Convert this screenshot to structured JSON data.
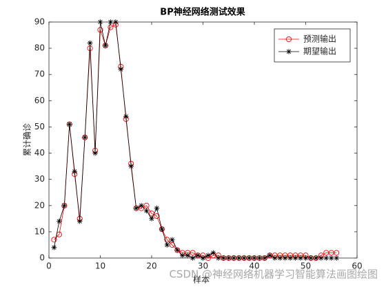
{
  "chart_data": {
    "type": "line",
    "title": "BP神经网络测试效果",
    "xlabel": "样本",
    "ylabel": "累计确诊",
    "x": [
      1,
      2,
      3,
      4,
      5,
      6,
      7,
      8,
      9,
      10,
      11,
      12,
      13,
      14,
      15,
      16,
      17,
      18,
      19,
      20,
      21,
      22,
      23,
      24,
      25,
      26,
      27,
      28,
      29,
      30,
      31,
      32,
      33,
      34,
      35,
      36,
      37,
      38,
      39,
      40,
      41,
      42,
      43,
      44,
      45,
      46,
      47,
      48,
      49,
      50,
      51,
      52,
      53,
      54,
      55,
      56
    ],
    "series": [
      {
        "name": "预测输出",
        "color": "#ff0000",
        "marker": "circle",
        "values": [
          7,
          9,
          20,
          51,
          32,
          15,
          46,
          80,
          41,
          87,
          81,
          88,
          89,
          73,
          53,
          36,
          19,
          19,
          20,
          17,
          16,
          11,
          7,
          5,
          3,
          2,
          2,
          2,
          1,
          1,
          0,
          1,
          1,
          0,
          0,
          0,
          0,
          0,
          0,
          0,
          0,
          0,
          1,
          1,
          1,
          1,
          1,
          1,
          1,
          1,
          0,
          0,
          1,
          2,
          2,
          2
        ]
      },
      {
        "name": "期望输出",
        "color": "#000000",
        "marker": "star",
        "values": [
          4,
          14,
          20,
          51,
          33,
          14,
          46,
          82,
          40,
          90,
          81,
          90,
          90,
          72,
          54,
          35,
          19,
          20,
          18,
          15,
          19,
          11,
          5,
          7,
          3,
          1,
          1,
          0,
          1,
          0,
          1,
          2,
          0,
          0,
          0,
          0,
          0,
          0,
          0,
          0,
          0,
          0,
          1,
          0,
          0,
          0,
          0,
          0,
          0,
          0,
          0,
          0,
          0,
          0,
          0,
          0
        ]
      }
    ],
    "xlim": [
      0,
      60
    ],
    "xticks": [
      0,
      10,
      20,
      30,
      40,
      50,
      60
    ],
    "ylim": [
      0,
      90
    ],
    "yticks": [
      0,
      10,
      20,
      30,
      40,
      50,
      60,
      70,
      80,
      90
    ],
    "legend": "northeast"
  },
  "watermark": "CSDN @神经网络机器学习智能算法画图绘图"
}
